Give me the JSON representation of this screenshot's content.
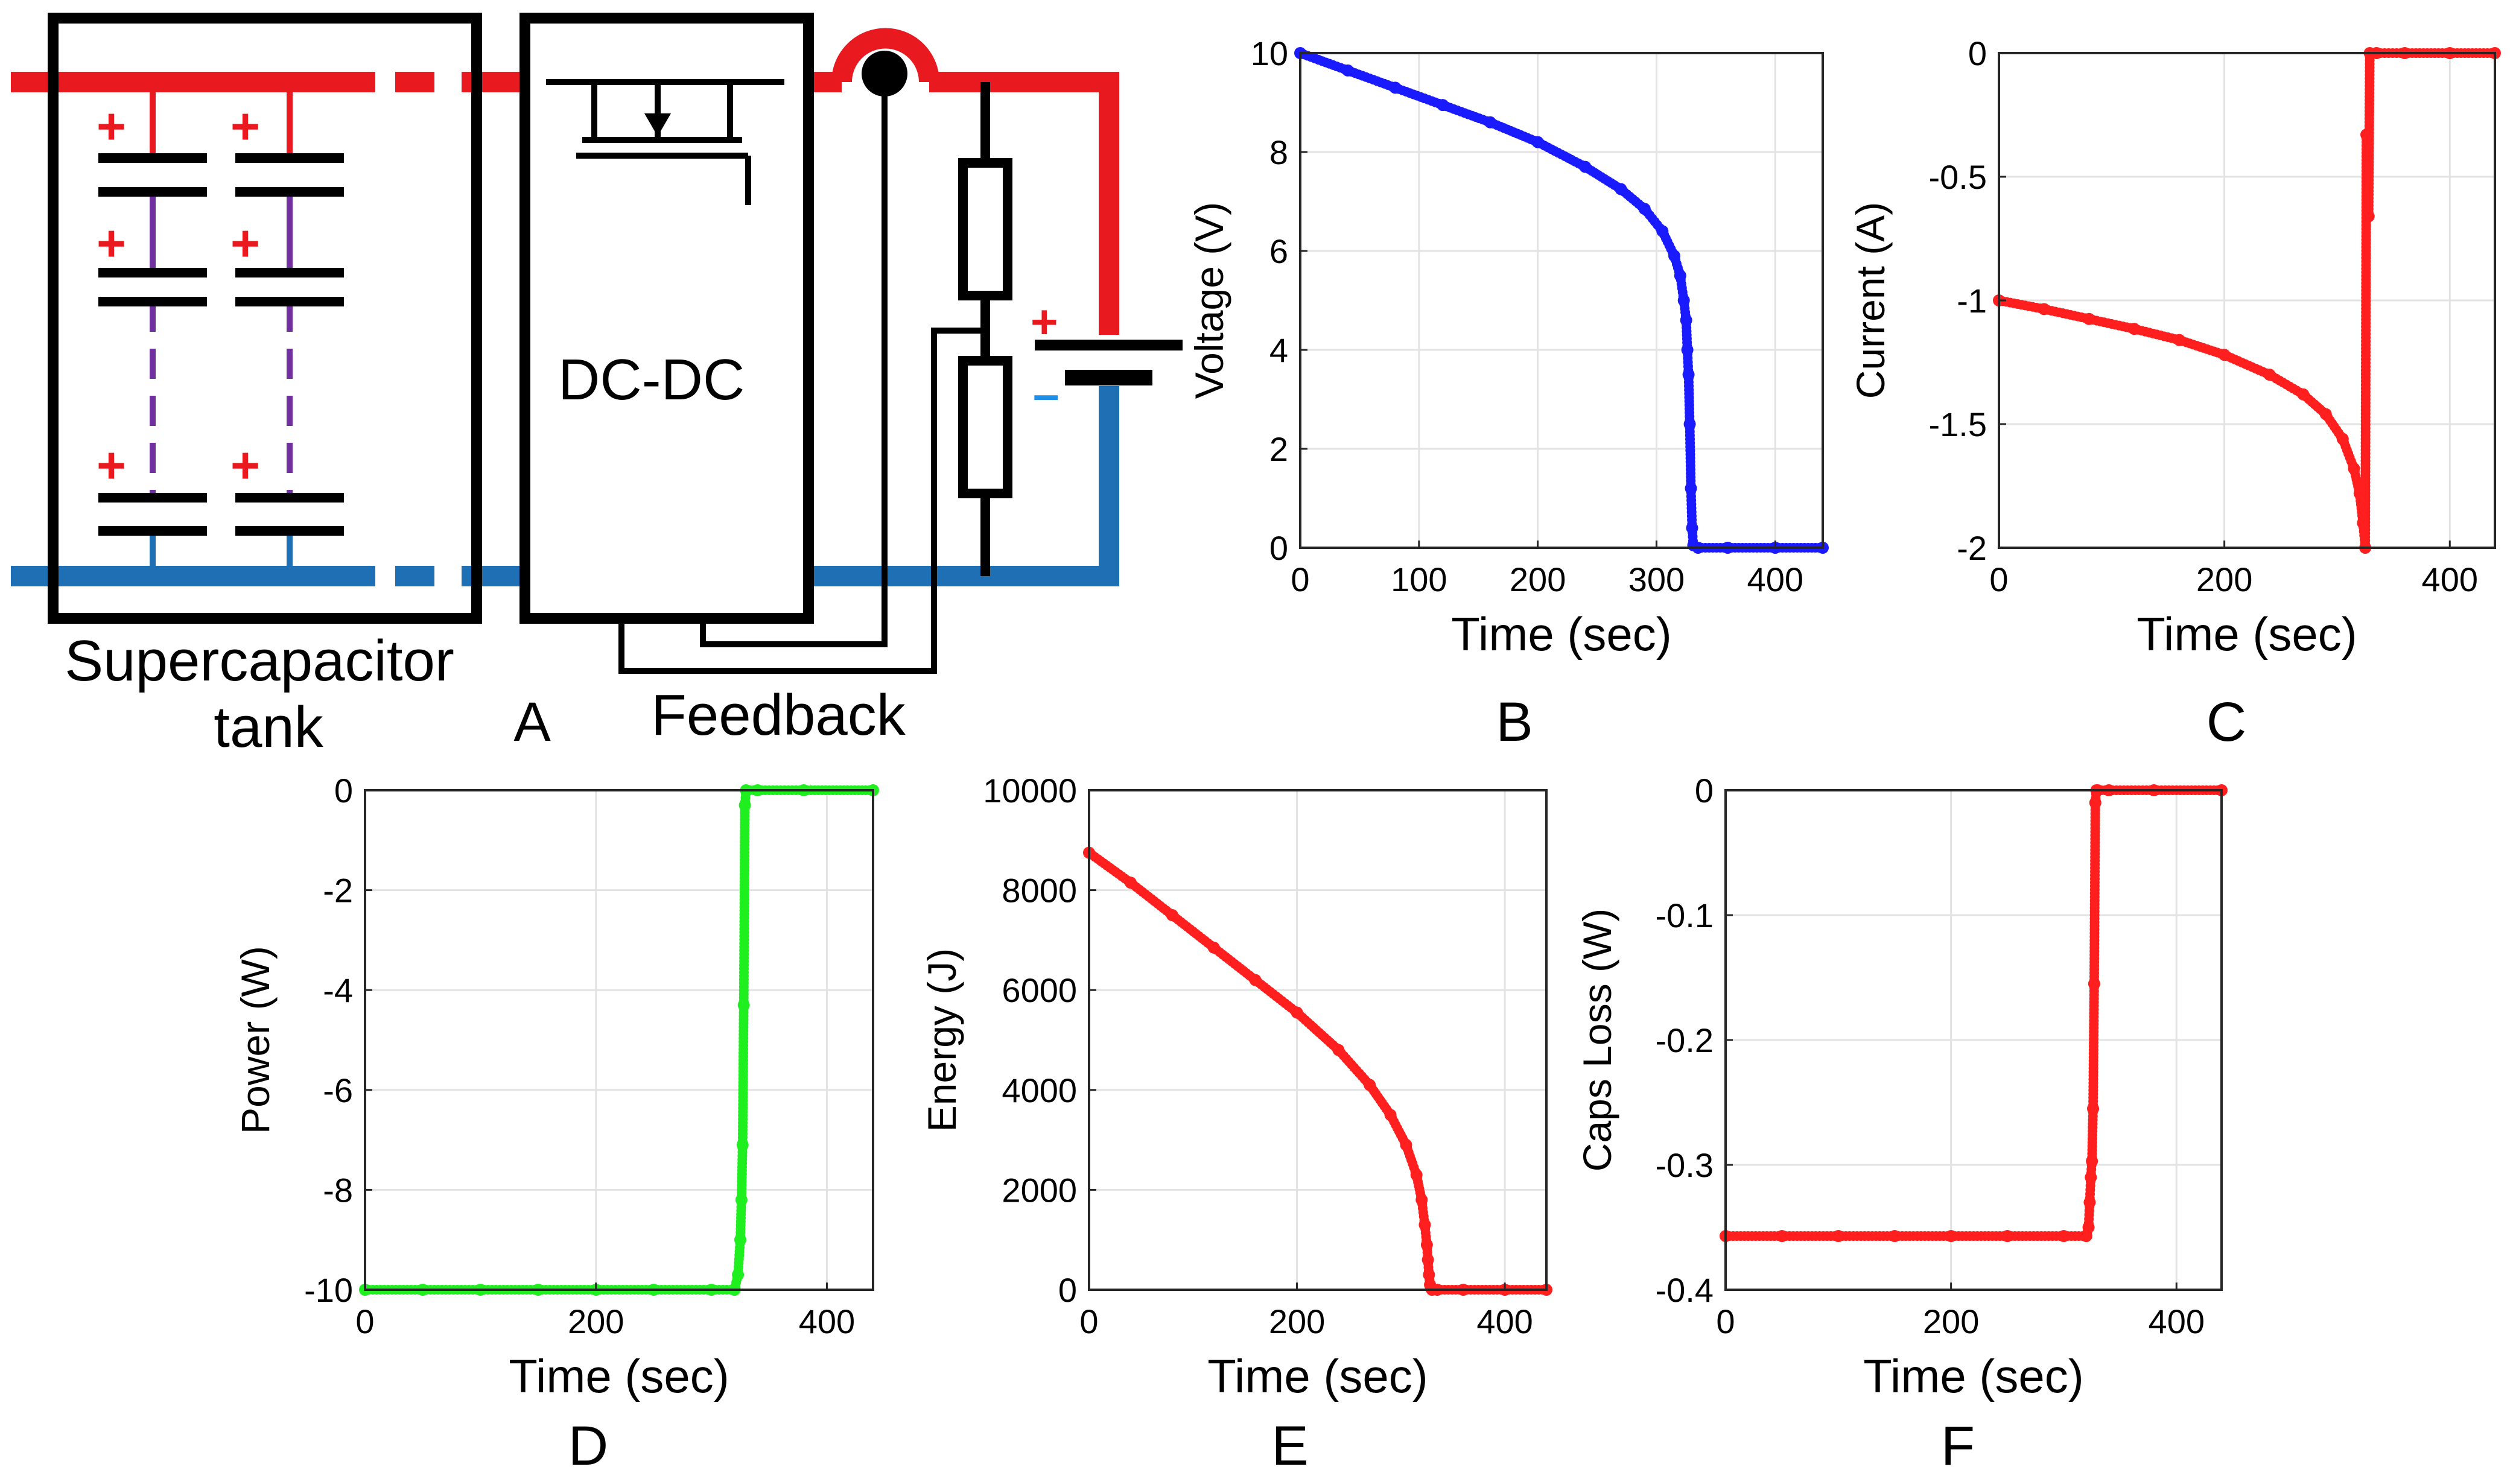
{
  "colors": {
    "positive_rail": "#e8191f",
    "negative_rail": "#1f6fb5",
    "cap_link": "#7030a0",
    "voltage": "#1a1aff",
    "current": "#ff1f1f",
    "power": "#1fef1f",
    "energy": "#ff1f1f",
    "loss": "#ff1f1f",
    "grid": "#e3e3e3"
  },
  "schematic": {
    "tank_label_line1": "Supercapacitor",
    "tank_label_line2": "tank",
    "converter_label": "DC-DC",
    "feedback_label": "Feedback",
    "panel_label": "A",
    "plus_sign": "+",
    "minus_sign": "–"
  },
  "chart_data": [
    {
      "id": "B",
      "type": "scatter",
      "panel_label": "B",
      "title": "",
      "xlabel": "Time (sec)",
      "ylabel": "Voltage (V)",
      "xlim": [
        0,
        440
      ],
      "ylim": [
        0,
        10
      ],
      "xticks": [
        0,
        100,
        200,
        300,
        400
      ],
      "yticks": [
        0,
        2,
        4,
        6,
        8,
        10
      ],
      "grid": true,
      "color": "#1a1aff",
      "series": [
        {
          "name": "Voltage",
          "x": [
            0,
            40,
            80,
            120,
            160,
            200,
            240,
            270,
            290,
            305,
            315,
            320,
            323,
            325,
            326,
            327,
            328,
            329,
            330,
            331,
            335,
            360,
            400,
            440
          ],
          "y": [
            10,
            9.65,
            9.3,
            8.95,
            8.6,
            8.2,
            7.7,
            7.25,
            6.85,
            6.4,
            5.9,
            5.5,
            5.0,
            4.6,
            4.0,
            3.5,
            2.5,
            1.2,
            0.4,
            0.05,
            0,
            0,
            0,
            0
          ]
        }
      ]
    },
    {
      "id": "C",
      "type": "scatter",
      "panel_label": "C",
      "title": "",
      "xlabel": "Time (sec)",
      "ylabel": "Current (A)",
      "xlim": [
        0,
        440
      ],
      "ylim": [
        -2,
        0
      ],
      "xticks": [
        0,
        200,
        400
      ],
      "yticks": [
        -2,
        -1.5,
        -1,
        -0.5,
        0
      ],
      "grid": true,
      "color": "#ff1f1f",
      "series": [
        {
          "name": "Current",
          "x": [
            0,
            40,
            80,
            120,
            160,
            200,
            240,
            270,
            290,
            305,
            315,
            320,
            323,
            325,
            326,
            328,
            329,
            335,
            360,
            400,
            440
          ],
          "y": [
            -1.0,
            -1.035,
            -1.075,
            -1.115,
            -1.16,
            -1.22,
            -1.3,
            -1.38,
            -1.46,
            -1.56,
            -1.68,
            -1.78,
            -1.9,
            -2.0,
            -0.33,
            -0.66,
            0,
            0,
            0,
            0,
            0
          ]
        }
      ]
    },
    {
      "id": "D",
      "type": "scatter",
      "panel_label": "D",
      "title": "",
      "xlabel": "Time (sec)",
      "ylabel": "Power (W)",
      "xlim": [
        0,
        440
      ],
      "ylim": [
        -10,
        0
      ],
      "xticks": [
        0,
        200,
        400
      ],
      "yticks": [
        -10,
        -8,
        -6,
        -4,
        -2,
        0
      ],
      "grid": true,
      "color": "#1fef1f",
      "series": [
        {
          "name": "Power",
          "x": [
            0,
            50,
            100,
            150,
            200,
            250,
            300,
            320,
            323,
            325,
            326,
            327,
            328,
            329,
            330,
            340,
            380,
            440
          ],
          "y": [
            -10,
            -10,
            -10,
            -10,
            -10,
            -10,
            -10,
            -10,
            -9.7,
            -9.0,
            -8.2,
            -7.1,
            -4.3,
            -0.3,
            0,
            0,
            0,
            0
          ]
        }
      ]
    },
    {
      "id": "E",
      "type": "scatter",
      "panel_label": "E",
      "title": "",
      "xlabel": "Time (sec)",
      "ylabel": "Energy (J)",
      "xlim": [
        0,
        440
      ],
      "ylim": [
        0,
        10000
      ],
      "xticks": [
        0,
        200,
        400
      ],
      "yticks": [
        0,
        2000,
        4000,
        6000,
        8000,
        10000
      ],
      "grid": true,
      "color": "#ff1f1f",
      "series": [
        {
          "name": "Energy",
          "x": [
            0,
            40,
            80,
            120,
            160,
            200,
            240,
            270,
            290,
            305,
            315,
            320,
            323,
            325,
            326,
            327,
            328,
            329,
            330,
            335,
            360,
            400,
            440
          ],
          "y": [
            8750,
            8150,
            7500,
            6850,
            6200,
            5550,
            4800,
            4100,
            3500,
            2900,
            2300,
            1800,
            1300,
            900,
            600,
            300,
            100,
            30,
            0,
            0,
            0,
            0,
            0
          ]
        }
      ]
    },
    {
      "id": "F",
      "type": "scatter",
      "panel_label": "F",
      "title": "",
      "xlabel": "Time (sec)",
      "ylabel": "Caps Loss (W)",
      "xlim": [
        0,
        440
      ],
      "ylim": [
        -0.4,
        0
      ],
      "xticks": [
        0,
        200,
        400
      ],
      "yticks": [
        -0.4,
        -0.3,
        -0.2,
        -0.1,
        0
      ],
      "grid": true,
      "color": "#ff1f1f",
      "series": [
        {
          "name": "Caps Loss",
          "x": [
            0,
            50,
            100,
            150,
            200,
            250,
            300,
            320,
            322,
            323,
            324,
            325,
            326,
            327,
            328,
            329,
            330,
            340,
            380,
            440
          ],
          "y": [
            -0.357,
            -0.357,
            -0.357,
            -0.357,
            -0.357,
            -0.357,
            -0.357,
            -0.357,
            -0.35,
            -0.33,
            -0.31,
            -0.297,
            -0.255,
            -0.155,
            -0.01,
            0,
            0,
            0,
            0,
            0
          ]
        }
      ]
    }
  ]
}
